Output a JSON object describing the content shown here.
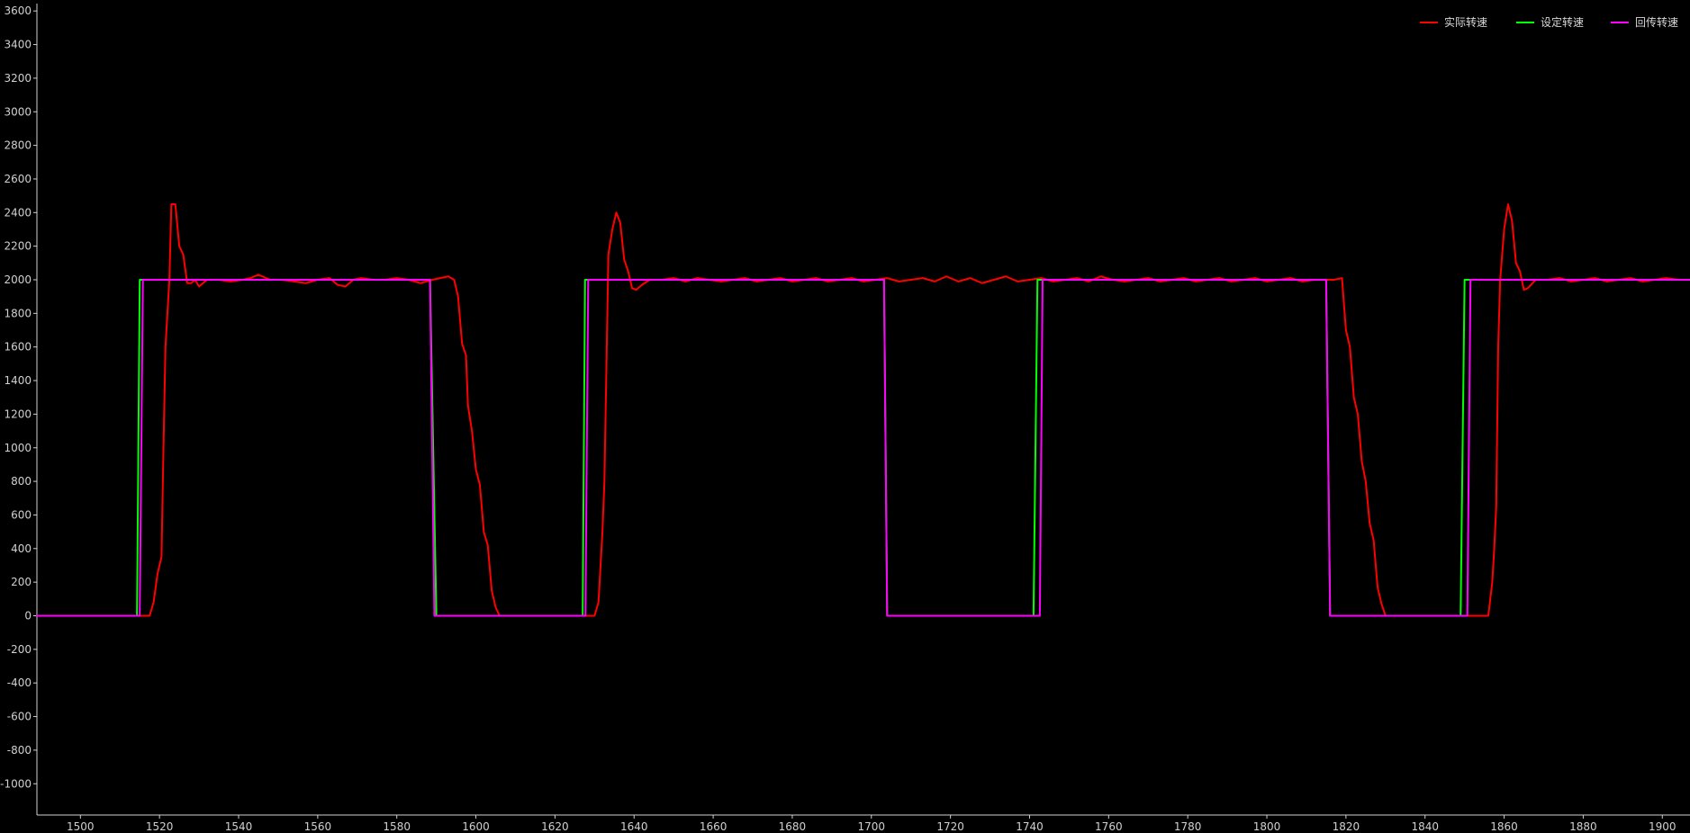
{
  "chart_data": {
    "type": "line",
    "title": "",
    "xlabel": "",
    "ylabel": "",
    "xlim": [
      1489,
      1907
    ],
    "ylim": [
      -1200,
      3600
    ],
    "x_ticks": [
      1500,
      1520,
      1540,
      1560,
      1580,
      1600,
      1620,
      1640,
      1660,
      1680,
      1700,
      1720,
      1740,
      1760,
      1780,
      1800,
      1820,
      1840,
      1860,
      1880,
      1900
    ],
    "y_ticks": [
      3600,
      3400,
      3200,
      3000,
      2800,
      2600,
      2400,
      2200,
      2000,
      1800,
      1600,
      1400,
      1200,
      1000,
      800,
      600,
      400,
      200,
      0,
      -200,
      -400,
      -600,
      -800,
      -1000
    ],
    "grid": false,
    "background": "#000000",
    "legend_position": "top-right",
    "series": [
      {
        "name": "实际转速",
        "color": "#ff0000",
        "points": [
          [
            1489,
            0
          ],
          [
            1516,
            0
          ],
          [
            1517.5,
            0
          ],
          [
            1518.5,
            80
          ],
          [
            1519.5,
            250
          ],
          [
            1520.5,
            350
          ],
          [
            1521,
            1000
          ],
          [
            1521.5,
            1600
          ],
          [
            1522.5,
            2000
          ],
          [
            1523,
            2450
          ],
          [
            1524,
            2450
          ],
          [
            1525,
            2200
          ],
          [
            1526,
            2150
          ],
          [
            1527,
            1980
          ],
          [
            1528,
            1980
          ],
          [
            1529,
            2000
          ],
          [
            1530,
            1960
          ],
          [
            1532,
            2000
          ],
          [
            1535,
            2000
          ],
          [
            1538,
            1990
          ],
          [
            1541,
            2000
          ],
          [
            1543,
            2010
          ],
          [
            1545,
            2030
          ],
          [
            1548,
            2000
          ],
          [
            1551,
            2000
          ],
          [
            1554,
            1990
          ],
          [
            1557,
            1980
          ],
          [
            1560,
            2000
          ],
          [
            1563,
            2010
          ],
          [
            1565,
            1970
          ],
          [
            1567,
            1960
          ],
          [
            1569,
            2000
          ],
          [
            1571,
            2010
          ],
          [
            1574,
            2000
          ],
          [
            1577,
            2000
          ],
          [
            1580,
            2010
          ],
          [
            1583,
            2000
          ],
          [
            1586,
            1980
          ],
          [
            1589,
            2000
          ],
          [
            1591,
            2010
          ],
          [
            1593,
            2020
          ],
          [
            1594.5,
            2000
          ],
          [
            1595.5,
            1900
          ],
          [
            1596.5,
            1620
          ],
          [
            1597.5,
            1550
          ],
          [
            1598,
            1250
          ],
          [
            1599,
            1100
          ],
          [
            1600,
            870
          ],
          [
            1601,
            780
          ],
          [
            1602,
            500
          ],
          [
            1603,
            420
          ],
          [
            1604,
            150
          ],
          [
            1605,
            50
          ],
          [
            1606,
            0
          ],
          [
            1630,
            0
          ],
          [
            1631,
            80
          ],
          [
            1632,
            500
          ],
          [
            1632.5,
            800
          ],
          [
            1633.5,
            2150
          ],
          [
            1634.5,
            2300
          ],
          [
            1635.5,
            2400
          ],
          [
            1636.5,
            2340
          ],
          [
            1637.5,
            2120
          ],
          [
            1638.5,
            2050
          ],
          [
            1639.5,
            1950
          ],
          [
            1640.5,
            1940
          ],
          [
            1642,
            1970
          ],
          [
            1644,
            2000
          ],
          [
            1647,
            2000
          ],
          [
            1650,
            2010
          ],
          [
            1653,
            1990
          ],
          [
            1656,
            2010
          ],
          [
            1659,
            2000
          ],
          [
            1662,
            1990
          ],
          [
            1665,
            2000
          ],
          [
            1668,
            2010
          ],
          [
            1671,
            1990
          ],
          [
            1674,
            2000
          ],
          [
            1677,
            2010
          ],
          [
            1680,
            1990
          ],
          [
            1683,
            2000
          ],
          [
            1686,
            2010
          ],
          [
            1689,
            1990
          ],
          [
            1692,
            2000
          ],
          [
            1695,
            2010
          ],
          [
            1698,
            1990
          ],
          [
            1701,
            2000
          ],
          [
            1704,
            2010
          ],
          [
            1707,
            1990
          ],
          [
            1710,
            2000
          ],
          [
            1713,
            2010
          ],
          [
            1716,
            1990
          ],
          [
            1719,
            2020
          ],
          [
            1722,
            1990
          ],
          [
            1725,
            2010
          ],
          [
            1728,
            1980
          ],
          [
            1731,
            2000
          ],
          [
            1734,
            2020
          ],
          [
            1737,
            1990
          ],
          [
            1740,
            2000
          ],
          [
            1743,
            2010
          ],
          [
            1746,
            1990
          ],
          [
            1749,
            2000
          ],
          [
            1752,
            2010
          ],
          [
            1755,
            1990
          ],
          [
            1758,
            2020
          ],
          [
            1761,
            2000
          ],
          [
            1764,
            1990
          ],
          [
            1767,
            2000
          ],
          [
            1770,
            2010
          ],
          [
            1773,
            1990
          ],
          [
            1776,
            2000
          ],
          [
            1779,
            2010
          ],
          [
            1782,
            1990
          ],
          [
            1785,
            2000
          ],
          [
            1788,
            2010
          ],
          [
            1791,
            1990
          ],
          [
            1794,
            2000
          ],
          [
            1797,
            2010
          ],
          [
            1800,
            1990
          ],
          [
            1803,
            2000
          ],
          [
            1806,
            2010
          ],
          [
            1809,
            1990
          ],
          [
            1812,
            2000
          ],
          [
            1815,
            2000
          ],
          [
            1817,
            2000
          ],
          [
            1819,
            2010
          ],
          [
            1820,
            1700
          ],
          [
            1821,
            1600
          ],
          [
            1822,
            1300
          ],
          [
            1823,
            1200
          ],
          [
            1824,
            920
          ],
          [
            1825,
            800
          ],
          [
            1826,
            550
          ],
          [
            1827,
            450
          ],
          [
            1828,
            170
          ],
          [
            1829,
            70
          ],
          [
            1830,
            0
          ],
          [
            1855,
            0
          ],
          [
            1856,
            0
          ],
          [
            1857,
            200
          ],
          [
            1857.5,
            400
          ],
          [
            1858,
            650
          ],
          [
            1858.5,
            1600
          ],
          [
            1859,
            2000
          ],
          [
            1860,
            2300
          ],
          [
            1861,
            2450
          ],
          [
            1862,
            2350
          ],
          [
            1863,
            2100
          ],
          [
            1864,
            2050
          ],
          [
            1865,
            1940
          ],
          [
            1866,
            1950
          ],
          [
            1868,
            2000
          ],
          [
            1871,
            2000
          ],
          [
            1874,
            2010
          ],
          [
            1877,
            1990
          ],
          [
            1880,
            2000
          ],
          [
            1883,
            2010
          ],
          [
            1886,
            1990
          ],
          [
            1889,
            2000
          ],
          [
            1892,
            2010
          ],
          [
            1895,
            1990
          ],
          [
            1898,
            2000
          ],
          [
            1901,
            2010
          ],
          [
            1904,
            2000
          ],
          [
            1907,
            2000
          ]
        ]
      },
      {
        "name": "设定转速",
        "color": "#00ff00",
        "points": [
          [
            1489,
            0
          ],
          [
            1514.3,
            0
          ],
          [
            1515,
            2000
          ],
          [
            1588.4,
            2000
          ],
          [
            1590,
            0
          ],
          [
            1627,
            0
          ],
          [
            1627.6,
            2000
          ],
          [
            1703.2,
            2000
          ],
          [
            1704,
            0
          ],
          [
            1741,
            0
          ],
          [
            1742,
            2000
          ],
          [
            1815,
            2000
          ],
          [
            1816,
            0
          ],
          [
            1849,
            0
          ],
          [
            1850,
            2000
          ],
          [
            1907,
            2000
          ]
        ]
      },
      {
        "name": "回传转速",
        "color": "#ff00ff",
        "points": [
          [
            1489,
            0
          ],
          [
            1515,
            0
          ],
          [
            1515.8,
            2000
          ],
          [
            1588.4,
            2000
          ],
          [
            1589.5,
            0
          ],
          [
            1627.7,
            0
          ],
          [
            1628.4,
            2000
          ],
          [
            1703.2,
            2000
          ],
          [
            1704,
            0
          ],
          [
            1742.6,
            0
          ],
          [
            1743.3,
            2000
          ],
          [
            1815,
            2000
          ],
          [
            1816,
            0
          ],
          [
            1850.7,
            0
          ],
          [
            1851.5,
            2000
          ],
          [
            1907,
            2000
          ]
        ]
      }
    ]
  }
}
